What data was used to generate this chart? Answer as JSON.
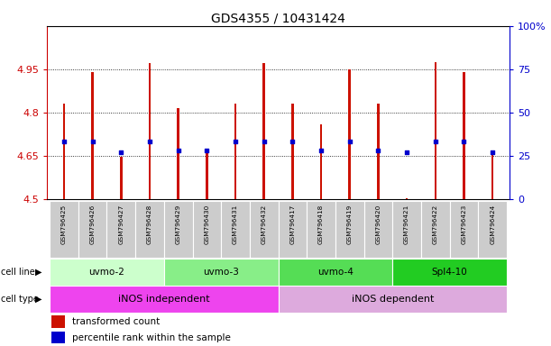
{
  "title": "GDS4355 / 10431424",
  "samples": [
    "GSM796425",
    "GSM796426",
    "GSM796427",
    "GSM796428",
    "GSM796429",
    "GSM796430",
    "GSM796431",
    "GSM796432",
    "GSM796417",
    "GSM796418",
    "GSM796419",
    "GSM796420",
    "GSM796421",
    "GSM796422",
    "GSM796423",
    "GSM796424"
  ],
  "bar_bottom": 4.5,
  "transformed_counts": [
    4.83,
    4.94,
    4.645,
    4.97,
    4.815,
    4.67,
    4.83,
    4.97,
    4.83,
    4.76,
    4.95,
    4.83,
    4.502,
    4.975,
    4.94,
    4.66
  ],
  "percentile_ranks_left": [
    4.7,
    4.7,
    4.663,
    4.7,
    4.668,
    4.668,
    4.7,
    4.7,
    4.7,
    4.668,
    4.7,
    4.668,
    4.663,
    4.7,
    4.7,
    4.663
  ],
  "ylim_left": [
    4.5,
    5.1
  ],
  "ylim_right": [
    0,
    100
  ],
  "yticks_left": [
    4.5,
    4.65,
    4.8,
    4.95
  ],
  "yticks_left_labels": [
    "4.5",
    "4.65",
    "4.8",
    "4.95"
  ],
  "yticks_right": [
    0,
    25,
    50,
    75,
    100
  ],
  "yticks_right_labels": [
    "0",
    "25",
    "50",
    "75",
    "100%"
  ],
  "bar_color": "#CC1100",
  "dot_color": "#0000CC",
  "cell_line_groups": [
    {
      "label": "uvmo-2",
      "start": 0,
      "end": 4,
      "color": "#ccffcc"
    },
    {
      "label": "uvmo-3",
      "start": 4,
      "end": 8,
      "color": "#88ee88"
    },
    {
      "label": "uvmo-4",
      "start": 8,
      "end": 12,
      "color": "#55dd55"
    },
    {
      "label": "Spl4-10",
      "start": 12,
      "end": 16,
      "color": "#22cc22"
    }
  ],
  "cell_type_groups": [
    {
      "label": "iNOS independent",
      "start": 0,
      "end": 8,
      "color": "#ee44ee"
    },
    {
      "label": "iNOS dependent",
      "start": 8,
      "end": 16,
      "color": "#ddaadd"
    }
  ],
  "legend_items": [
    {
      "label": "transformed count",
      "color": "#CC1100"
    },
    {
      "label": "percentile rank within the sample",
      "color": "#0000CC"
    }
  ],
  "left_axis_color": "#CC0000",
  "right_axis_color": "#0000CC",
  "bar_width": 0.08,
  "background_color": "#ffffff"
}
